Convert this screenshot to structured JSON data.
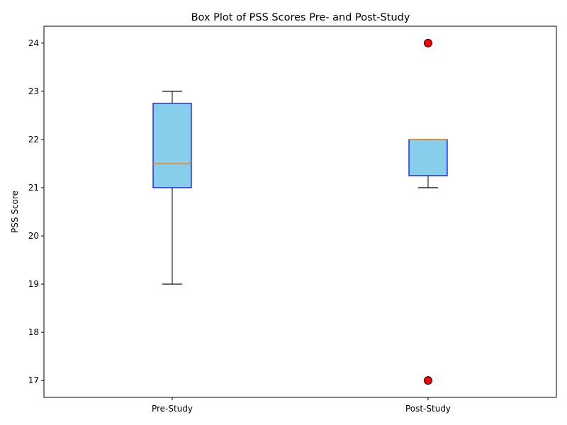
{
  "chart_data": {
    "type": "box",
    "title": "Box Plot of PSS Scores Pre- and Post-Study",
    "xlabel": "",
    "ylabel": "PSS Score",
    "ylim": [
      16.65,
      24.35
    ],
    "yticks": [
      17,
      18,
      19,
      20,
      21,
      22,
      23,
      24
    ],
    "grid": false,
    "categories": [
      "Pre-Study",
      "Post-Study"
    ],
    "boxes": [
      {
        "name": "Pre-Study",
        "whisker_low": 19,
        "q1": 21,
        "median": 21.5,
        "q3": 22.75,
        "whisker_high": 23,
        "outliers": []
      },
      {
        "name": "Post-Study",
        "whisker_low": 21,
        "q1": 21.25,
        "median": 22,
        "q3": 22,
        "whisker_high": 22,
        "outliers": [
          17,
          24
        ]
      }
    ],
    "colors": {
      "box_fill": "#87ceeb",
      "box_edge": "#0000ff",
      "median": "#ff7f0e",
      "whisker": "#000000",
      "outlier_fill": "#ff0000",
      "outlier_edge": "#000000"
    }
  }
}
